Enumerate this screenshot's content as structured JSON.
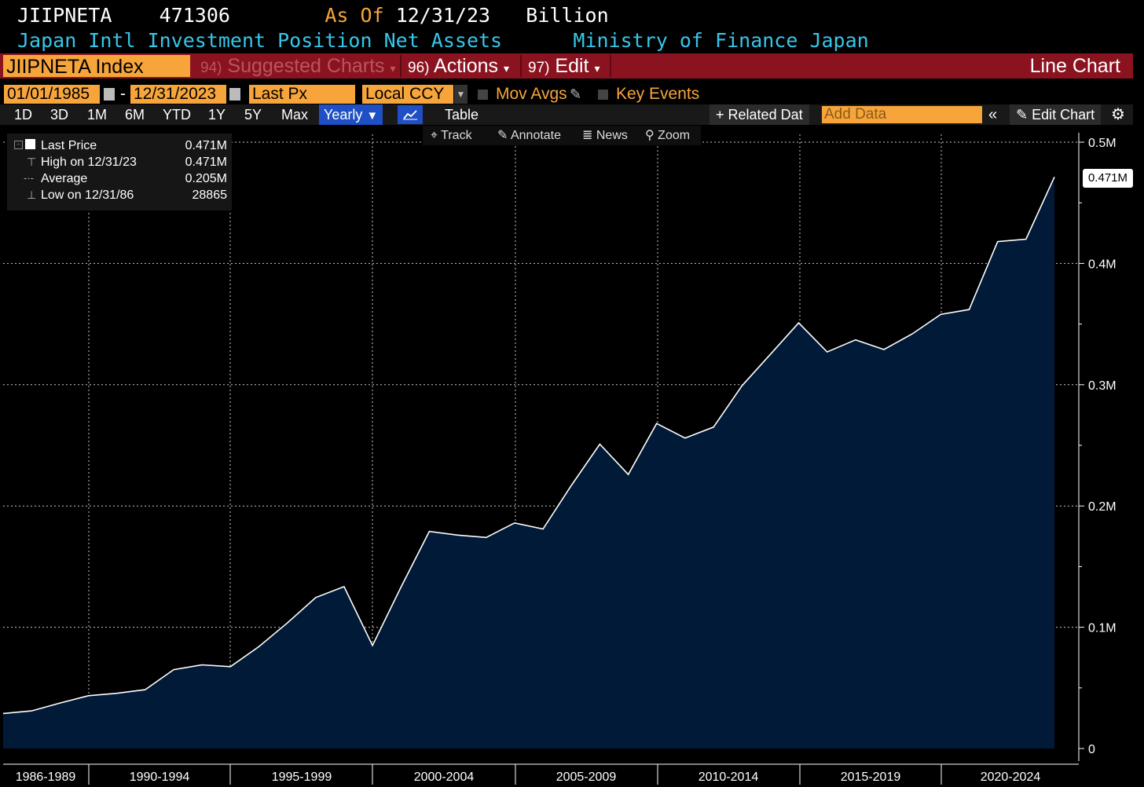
{
  "header": {
    "ticker": "JIIPNETA",
    "last_value": "471306",
    "as_of_label": "As Of",
    "as_of_date": "12/31/23",
    "units": "Billion",
    "description": "Japan Intl Investment Position Net Assets",
    "source": "Ministry of Finance Japan"
  },
  "toolbar": {
    "security": "JIIPNETA Index",
    "suggested_num": "94)",
    "suggested_label": "Suggested Charts",
    "actions_num": "96)",
    "actions_label": "Actions",
    "edit_num": "97)",
    "edit_label": "Edit",
    "chart_type": "Line Chart"
  },
  "controls": {
    "start_date": "01/01/1985",
    "dash": "-",
    "end_date": "12/31/2023",
    "field": "Last Px",
    "currency": "Local CCY",
    "mov_avgs": "Mov Avgs",
    "key_events": "Key Events"
  },
  "periods": [
    "1D",
    "3D",
    "1M",
    "6M",
    "YTD",
    "1Y",
    "5Y",
    "Max"
  ],
  "period_selected": "Yearly",
  "table_label": "Table",
  "related_data": "Related Dat",
  "add_data_placeholder": "Add Data",
  "edit_chart": "Edit Chart",
  "subtools": [
    "Track",
    "Annotate",
    "News",
    "Zoom"
  ],
  "legend": {
    "rows": [
      {
        "label": "Last Price",
        "value": "0.471M"
      },
      {
        "label": "High on 12/31/23",
        "value": "0.471M"
      },
      {
        "label": "Average",
        "value": "0.205M"
      },
      {
        "label": "Low on 12/31/86",
        "value": "28865"
      }
    ]
  },
  "last_price_label": "0.471M",
  "colors": {
    "accent": "#f7a53b",
    "fill": "#011a38",
    "toolbar": "#8b1320",
    "cyan": "#37c6e8"
  },
  "chart_data": {
    "type": "area",
    "x": [
      1986,
      1987,
      1988,
      1989,
      1990,
      1991,
      1992,
      1993,
      1994,
      1995,
      1996,
      1997,
      1998,
      1999,
      2000,
      2001,
      2002,
      2003,
      2004,
      2005,
      2006,
      2007,
      2008,
      2009,
      2010,
      2011,
      2012,
      2013,
      2014,
      2015,
      2016,
      2017,
      2018,
      2019,
      2020,
      2021,
      2022,
      2023
    ],
    "values": [
      28865,
      31000,
      37500,
      43500,
      45500,
      48500,
      65000,
      69000,
      67500,
      84000,
      103500,
      124500,
      133500,
      85000,
      133000,
      179000,
      176000,
      174000,
      186000,
      181000,
      217000,
      251000,
      226000,
      268000,
      256000,
      265000,
      299000,
      325000,
      351000,
      327000,
      337000,
      329000,
      342000,
      358000,
      362000,
      418000,
      420000,
      471306
    ],
    "ylim": [
      0,
      500000
    ],
    "yticks": [
      "0",
      "0.1M",
      "0.2M",
      "0.3M",
      "0.4M",
      "0.5M"
    ],
    "xlabels": [
      "1986-1989",
      "1990-1994",
      "1995-1999",
      "2000-2004",
      "2005-2009",
      "2010-2014",
      "2015-2019",
      "2020-2024"
    ],
    "grid": true
  }
}
